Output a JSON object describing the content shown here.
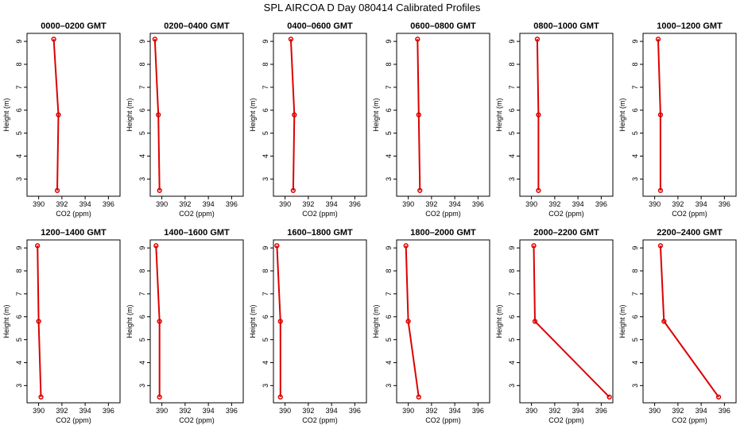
{
  "figure": {
    "title": "SPL AIRCOA D  Day 080414  Calibrated Profiles"
  },
  "chart_data": [
    {
      "type": "line",
      "title": "0000–0200 GMT",
      "xlabel": "CO2 (ppm)",
      "ylabel": "Height (m)",
      "xlim": [
        389,
        397
      ],
      "ylim": [
        2.25,
        9.35
      ],
      "x_ticks": [
        390,
        392,
        394,
        396
      ],
      "y_ticks": [
        3,
        4,
        5,
        6,
        7,
        8,
        9
      ],
      "x": [
        391.3,
        391.7,
        391.6
      ],
      "y": [
        9.1,
        5.8,
        2.5
      ]
    },
    {
      "type": "line",
      "title": "0200–0400 GMT",
      "xlabel": "CO2 (ppm)",
      "ylabel": "Height (m)",
      "xlim": [
        389,
        397
      ],
      "ylim": [
        2.25,
        9.35
      ],
      "x_ticks": [
        390,
        392,
        394,
        396
      ],
      "y_ticks": [
        3,
        4,
        5,
        6,
        7,
        8,
        9
      ],
      "x": [
        389.4,
        389.7,
        389.8
      ],
      "y": [
        9.1,
        5.8,
        2.5
      ]
    },
    {
      "type": "line",
      "title": "0400–0600 GMT",
      "xlabel": "CO2 (ppm)",
      "ylabel": "Height (m)",
      "xlim": [
        389,
        397
      ],
      "ylim": [
        2.25,
        9.35
      ],
      "x_ticks": [
        390,
        392,
        394,
        396
      ],
      "y_ticks": [
        3,
        4,
        5,
        6,
        7,
        8,
        9
      ],
      "x": [
        390.5,
        390.8,
        390.7
      ],
      "y": [
        9.1,
        5.8,
        2.5
      ]
    },
    {
      "type": "line",
      "title": "0600–0800 GMT",
      "xlabel": "CO2 (ppm)",
      "ylabel": "Height (m)",
      "xlim": [
        389,
        397
      ],
      "ylim": [
        2.25,
        9.35
      ],
      "x_ticks": [
        390,
        392,
        394,
        396
      ],
      "y_ticks": [
        3,
        4,
        5,
        6,
        7,
        8,
        9
      ],
      "x": [
        390.8,
        390.9,
        391.0
      ],
      "y": [
        9.1,
        5.8,
        2.5
      ]
    },
    {
      "type": "line",
      "title": "0800–1000 GMT",
      "xlabel": "CO2 (ppm)",
      "ylabel": "Height (m)",
      "xlim": [
        389,
        397
      ],
      "ylim": [
        2.25,
        9.35
      ],
      "x_ticks": [
        390,
        392,
        394,
        396
      ],
      "y_ticks": [
        3,
        4,
        5,
        6,
        7,
        8,
        9
      ],
      "x": [
        390.5,
        390.6,
        390.6
      ],
      "y": [
        9.1,
        5.8,
        2.5
      ]
    },
    {
      "type": "line",
      "title": "1000–1200 GMT",
      "xlabel": "CO2 (ppm)",
      "ylabel": "Height (m)",
      "xlim": [
        389,
        397
      ],
      "ylim": [
        2.25,
        9.35
      ],
      "x_ticks": [
        390,
        392,
        394,
        396
      ],
      "y_ticks": [
        3,
        4,
        5,
        6,
        7,
        8,
        9
      ],
      "x": [
        390.3,
        390.5,
        390.5
      ],
      "y": [
        9.1,
        5.8,
        2.5
      ]
    },
    {
      "type": "line",
      "title": "1200–1400 GMT",
      "xlabel": "CO2 (ppm)",
      "ylabel": "Height (m)",
      "xlim": [
        389,
        397
      ],
      "ylim": [
        2.25,
        9.35
      ],
      "x_ticks": [
        390,
        392,
        394,
        396
      ],
      "y_ticks": [
        3,
        4,
        5,
        6,
        7,
        8,
        9
      ],
      "x": [
        389.9,
        390.0,
        390.2
      ],
      "y": [
        9.1,
        5.8,
        2.5
      ]
    },
    {
      "type": "line",
      "title": "1400–1600 GMT",
      "xlabel": "CO2 (ppm)",
      "ylabel": "Height (m)",
      "xlim": [
        389,
        397
      ],
      "ylim": [
        2.25,
        9.35
      ],
      "x_ticks": [
        390,
        392,
        394,
        396
      ],
      "y_ticks": [
        3,
        4,
        5,
        6,
        7,
        8,
        9
      ],
      "x": [
        389.5,
        389.8,
        389.8
      ],
      "y": [
        9.1,
        5.8,
        2.5
      ]
    },
    {
      "type": "line",
      "title": "1600–1800 GMT",
      "xlabel": "CO2 (ppm)",
      "ylabel": "Height (m)",
      "xlim": [
        389,
        397
      ],
      "ylim": [
        2.25,
        9.35
      ],
      "x_ticks": [
        390,
        392,
        394,
        396
      ],
      "y_ticks": [
        3,
        4,
        5,
        6,
        7,
        8,
        9
      ],
      "x": [
        389.3,
        389.6,
        389.6
      ],
      "y": [
        9.1,
        5.8,
        2.5
      ]
    },
    {
      "type": "line",
      "title": "1800–2000 GMT",
      "xlabel": "CO2 (ppm)",
      "ylabel": "Height (m)",
      "xlim": [
        389,
        397
      ],
      "ylim": [
        2.25,
        9.35
      ],
      "x_ticks": [
        390,
        392,
        394,
        396
      ],
      "y_ticks": [
        3,
        4,
        5,
        6,
        7,
        8,
        9
      ],
      "x": [
        389.8,
        390.0,
        390.9
      ],
      "y": [
        9.1,
        5.8,
        2.5
      ]
    },
    {
      "type": "line",
      "title": "2000–2200 GMT",
      "xlabel": "CO2 (ppm)",
      "ylabel": "Height (m)",
      "xlim": [
        389,
        397
      ],
      "ylim": [
        2.25,
        9.35
      ],
      "x_ticks": [
        390,
        392,
        394,
        396
      ],
      "y_ticks": [
        3,
        4,
        5,
        6,
        7,
        8,
        9
      ],
      "x": [
        390.2,
        390.3,
        396.7
      ],
      "y": [
        9.1,
        5.8,
        2.5
      ]
    },
    {
      "type": "line",
      "title": "2200–2400 GMT",
      "xlabel": "CO2 (ppm)",
      "ylabel": "Height (m)",
      "xlim": [
        389,
        397
      ],
      "ylim": [
        2.25,
        9.35
      ],
      "x_ticks": [
        390,
        392,
        394,
        396
      ],
      "y_ticks": [
        3,
        4,
        5,
        6,
        7,
        8,
        9
      ],
      "x": [
        390.5,
        390.8,
        395.5
      ],
      "y": [
        9.1,
        5.8,
        2.5
      ]
    }
  ]
}
